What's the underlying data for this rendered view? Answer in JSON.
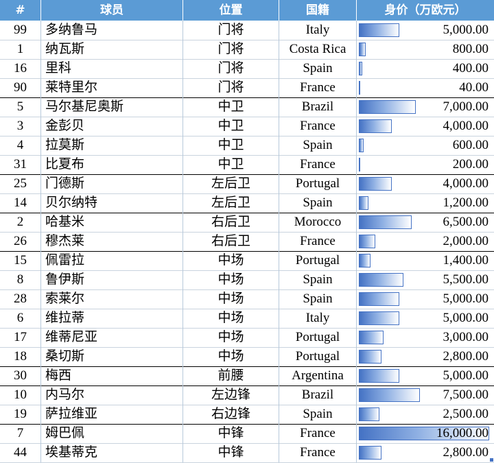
{
  "header": {
    "num": "#",
    "name": "球员",
    "position": "位置",
    "nationality": "国籍",
    "value": "身价（万欧元）"
  },
  "max_value": 16000,
  "bar_color": "#4472c4",
  "header_color": "#5b9bd5",
  "rows": [
    {
      "num": "99",
      "name": "多纳鲁马",
      "position": "门将",
      "nationality": "Italy",
      "value": 5000,
      "value_text": "5,000.00"
    },
    {
      "num": "1",
      "name": "纳瓦斯",
      "position": "门将",
      "nationality": "Costa Rica",
      "value": 800,
      "value_text": "800.00"
    },
    {
      "num": "16",
      "name": "里科",
      "position": "门将",
      "nationality": "Spain",
      "value": 400,
      "value_text": "400.00"
    },
    {
      "num": "90",
      "name": "莱特里尔",
      "position": "门将",
      "nationality": "France",
      "value": 40,
      "value_text": "40.00",
      "group_end": true
    },
    {
      "num": "5",
      "name": "马尔基尼奥斯",
      "position": "中卫",
      "nationality": "Brazil",
      "value": 7000,
      "value_text": "7,000.00"
    },
    {
      "num": "3",
      "name": "金彭贝",
      "position": "中卫",
      "nationality": "France",
      "value": 4000,
      "value_text": "4,000.00"
    },
    {
      "num": "4",
      "name": "拉莫斯",
      "position": "中卫",
      "nationality": "Spain",
      "value": 600,
      "value_text": "600.00"
    },
    {
      "num": "31",
      "name": "比夏布",
      "position": "中卫",
      "nationality": "France",
      "value": 200,
      "value_text": "200.00",
      "group_end": true
    },
    {
      "num": "25",
      "name": "门德斯",
      "position": "左后卫",
      "nationality": "Portugal",
      "value": 4000,
      "value_text": "4,000.00"
    },
    {
      "num": "14",
      "name": "贝尔纳特",
      "position": "左后卫",
      "nationality": "Spain",
      "value": 1200,
      "value_text": "1,200.00",
      "group_end": true
    },
    {
      "num": "2",
      "name": "哈基米",
      "position": "右后卫",
      "nationality": "Morocco",
      "value": 6500,
      "value_text": "6,500.00"
    },
    {
      "num": "26",
      "name": "穆杰莱",
      "position": "右后卫",
      "nationality": "France",
      "value": 2000,
      "value_text": "2,000.00",
      "group_end": true
    },
    {
      "num": "15",
      "name": "佩雷拉",
      "position": "中场",
      "nationality": "Portugal",
      "value": 1400,
      "value_text": "1,400.00"
    },
    {
      "num": "8",
      "name": "鲁伊斯",
      "position": "中场",
      "nationality": "Spain",
      "value": 5500,
      "value_text": "5,500.00"
    },
    {
      "num": "28",
      "name": "索莱尔",
      "position": "中场",
      "nationality": "Spain",
      "value": 5000,
      "value_text": "5,000.00"
    },
    {
      "num": "6",
      "name": "维拉蒂",
      "position": "中场",
      "nationality": "Italy",
      "value": 5000,
      "value_text": "5,000.00"
    },
    {
      "num": "17",
      "name": "维蒂尼亚",
      "position": "中场",
      "nationality": "Portugal",
      "value": 3000,
      "value_text": "3,000.00"
    },
    {
      "num": "18",
      "name": "桑切斯",
      "position": "中场",
      "nationality": "Portugal",
      "value": 2800,
      "value_text": "2,800.00",
      "group_end": true
    },
    {
      "num": "30",
      "name": "梅西",
      "position": "前腰",
      "nationality": "Argentina",
      "value": 5000,
      "value_text": "5,000.00",
      "group_end": true
    },
    {
      "num": "10",
      "name": "内马尔",
      "position": "左边锋",
      "nationality": "Brazil",
      "value": 7500,
      "value_text": "7,500.00"
    },
    {
      "num": "19",
      "name": "萨拉维亚",
      "position": "右边锋",
      "nationality": "Spain",
      "value": 2500,
      "value_text": "2,500.00",
      "group_end": true
    },
    {
      "num": "7",
      "name": "姆巴佩",
      "position": "中锋",
      "nationality": "France",
      "value": 16000,
      "value_text": "16,000.00"
    },
    {
      "num": "44",
      "name": "埃基蒂克",
      "position": "中锋",
      "nationality": "France",
      "value": 2800,
      "value_text": "2,800.00"
    }
  ]
}
